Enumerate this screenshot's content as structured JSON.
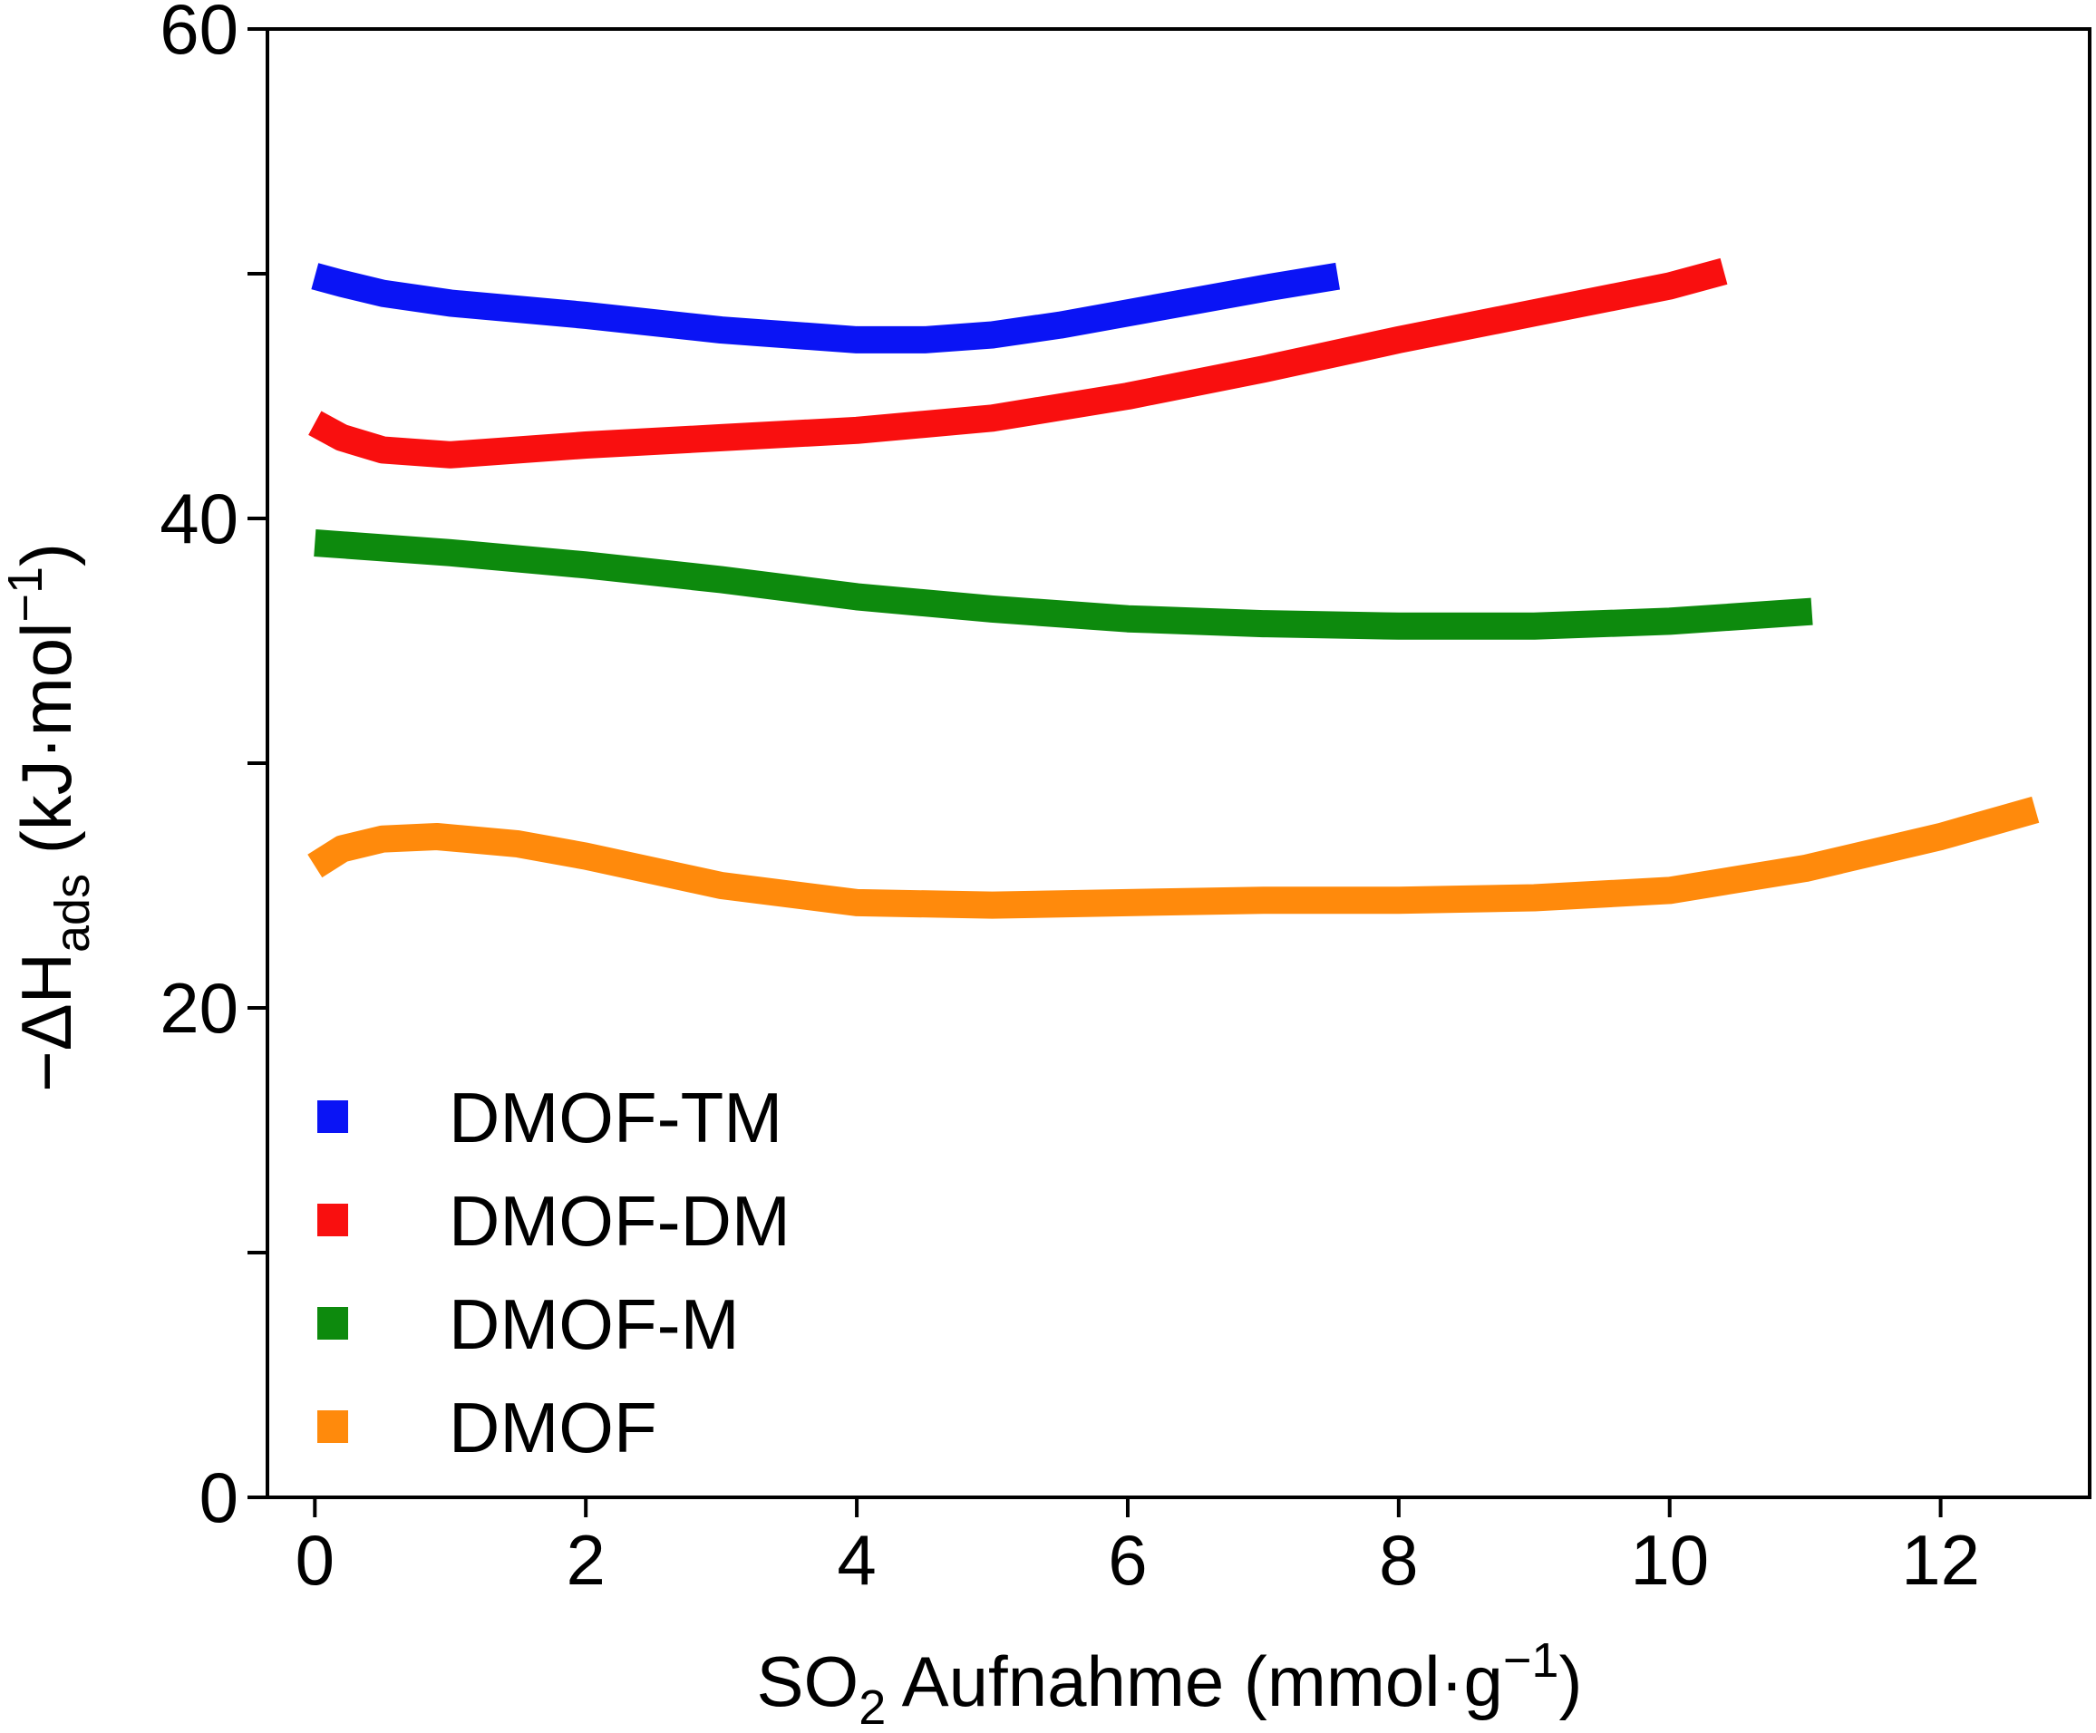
{
  "chart_data": {
    "type": "line",
    "xlabel": {
      "main": "SO",
      "sub": "2",
      "rest": " Aufnahme (mmol·g",
      "sup": "−1",
      "end": ")"
    },
    "ylabel": {
      "main": "−ΔH",
      "sub": "ads",
      "rest": " (kJ·mol",
      "sup": "−1",
      "end": ")"
    },
    "xlim": [
      -0.35,
      13.1
    ],
    "ylim": [
      0,
      60
    ],
    "x_ticks": [
      0,
      2,
      4,
      6,
      8,
      10,
      12
    ],
    "y_ticks": [
      0,
      10,
      20,
      30,
      40,
      50,
      60
    ],
    "y_tick_labels": [
      "0",
      "",
      "20",
      "",
      "40",
      "",
      "60"
    ],
    "grid": false,
    "legend_position": "lower-left",
    "series": [
      {
        "name": "DMOF-TM",
        "color": "#0a14f5",
        "points": [
          [
            0,
            49.9
          ],
          [
            0.2,
            49.6
          ],
          [
            0.5,
            49.2
          ],
          [
            1,
            48.8
          ],
          [
            2,
            48.3
          ],
          [
            3,
            47.7
          ],
          [
            4,
            47.3
          ],
          [
            4.5,
            47.3
          ],
          [
            5,
            47.5
          ],
          [
            5.5,
            47.9
          ],
          [
            6,
            48.4
          ],
          [
            6.5,
            48.9
          ],
          [
            7,
            49.4
          ],
          [
            7.55,
            49.9
          ]
        ]
      },
      {
        "name": "DMOF-DM",
        "color": "#f90f0f",
        "points": [
          [
            0,
            43.9
          ],
          [
            0.2,
            43.3
          ],
          [
            0.5,
            42.8
          ],
          [
            1,
            42.6
          ],
          [
            2,
            43.0
          ],
          [
            3,
            43.3
          ],
          [
            4,
            43.6
          ],
          [
            5,
            44.1
          ],
          [
            6,
            45.0
          ],
          [
            7,
            46.1
          ],
          [
            8,
            47.3
          ],
          [
            9,
            48.4
          ],
          [
            10,
            49.5
          ],
          [
            10.4,
            50.1
          ]
        ]
      },
      {
        "name": "DMOF-M",
        "color": "#0d8a0d",
        "points": [
          [
            0,
            39.0
          ],
          [
            1,
            38.6
          ],
          [
            2,
            38.1
          ],
          [
            3,
            37.5
          ],
          [
            4,
            36.8
          ],
          [
            5,
            36.3
          ],
          [
            6,
            35.9
          ],
          [
            7,
            35.7
          ],
          [
            8,
            35.6
          ],
          [
            9,
            35.6
          ],
          [
            10,
            35.8
          ],
          [
            11.05,
            36.2
          ]
        ]
      },
      {
        "name": "DMOF",
        "color": "#ff8a0c",
        "points": [
          [
            0,
            25.8
          ],
          [
            0.2,
            26.5
          ],
          [
            0.5,
            26.9
          ],
          [
            0.9,
            27.0
          ],
          [
            1.5,
            26.7
          ],
          [
            2,
            26.2
          ],
          [
            3,
            25.0
          ],
          [
            4,
            24.3
          ],
          [
            5,
            24.2
          ],
          [
            6,
            24.3
          ],
          [
            7,
            24.4
          ],
          [
            8,
            24.4
          ],
          [
            9,
            24.5
          ],
          [
            10,
            24.8
          ],
          [
            11,
            25.7
          ],
          [
            12,
            27.0
          ],
          [
            12.7,
            28.1
          ]
        ]
      }
    ]
  }
}
